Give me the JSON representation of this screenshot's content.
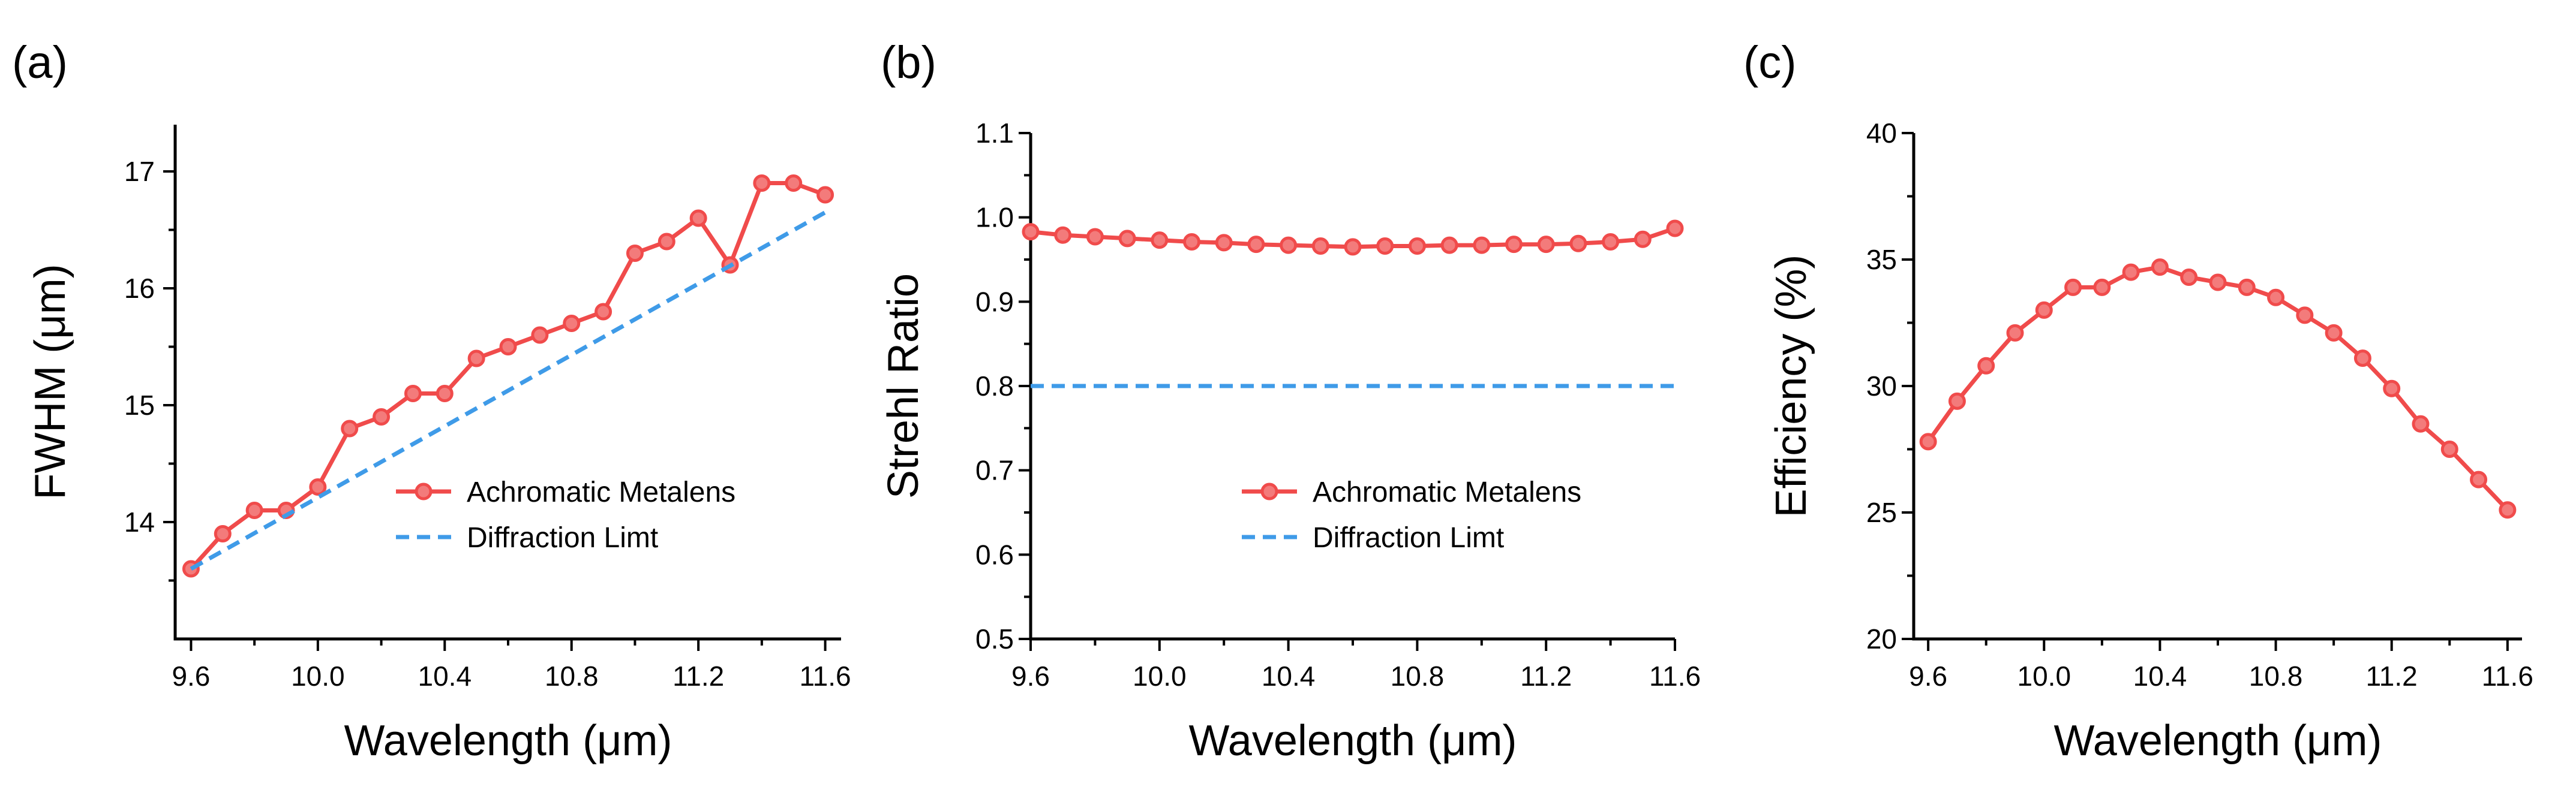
{
  "figure": {
    "colors": {
      "series": "#f04b4b",
      "marker_fill": "#f37b7b",
      "limit": "#3f9be8",
      "axis": "#000000"
    }
  },
  "chart_data": [
    {
      "type": "line",
      "panel_label": "(a)",
      "xlabel": "Wavelength (μm)",
      "ylabel": "FWHM (μm)",
      "xlim": [
        9.55,
        11.65
      ],
      "ylim": [
        13.0,
        17.4
      ],
      "xticks": [
        9.6,
        10.0,
        10.4,
        10.8,
        11.2,
        11.6
      ],
      "xtick_labels": [
        "9.6",
        "10.0",
        "10.4",
        "10.8",
        "11.2",
        "11.6"
      ],
      "yticks": [
        14,
        15,
        16,
        17
      ],
      "ytick_labels": [
        "14",
        "15",
        "16",
        "17"
      ],
      "series": [
        {
          "name": "Achromatic Metalens",
          "style": "line-marker",
          "x": [
            9.6,
            9.7,
            9.8,
            9.9,
            10.0,
            10.1,
            10.2,
            10.3,
            10.4,
            10.5,
            10.6,
            10.7,
            10.8,
            10.9,
            11.0,
            11.1,
            11.2,
            11.3,
            11.4,
            11.5,
            11.6
          ],
          "y": [
            13.6,
            13.9,
            14.1,
            14.1,
            14.3,
            14.8,
            14.9,
            15.1,
            15.1,
            15.4,
            15.5,
            15.6,
            15.7,
            15.8,
            16.3,
            16.4,
            16.6,
            16.2,
            16.9,
            16.9,
            16.8
          ]
        },
        {
          "name": "Diffraction Limt",
          "style": "dashed",
          "x": [
            9.6,
            11.6
          ],
          "y": [
            13.6,
            16.65
          ]
        }
      ],
      "legend_position": "lower-right"
    },
    {
      "type": "line",
      "panel_label": "(b)",
      "xlabel": "Wavelength (μm)",
      "ylabel": "Strehl Ratio",
      "xlim": [
        9.6,
        11.6
      ],
      "ylim": [
        0.5,
        1.1
      ],
      "xticks": [
        9.6,
        10.0,
        10.4,
        10.8,
        11.2,
        11.6
      ],
      "xtick_labels": [
        "9.6",
        "10.0",
        "10.4",
        "10.8",
        "11.2",
        "11.6"
      ],
      "yticks": [
        0.5,
        0.6,
        0.7,
        0.8,
        0.9,
        1.0,
        1.1
      ],
      "ytick_labels": [
        "0.5",
        "0.6",
        "0.7",
        "0.8",
        "0.9",
        "1.0",
        "1.1"
      ],
      "series": [
        {
          "name": "Achromatic Metalens",
          "style": "line-marker",
          "x": [
            9.6,
            9.7,
            9.8,
            9.9,
            10.0,
            10.1,
            10.2,
            10.3,
            10.4,
            10.5,
            10.6,
            10.7,
            10.8,
            10.9,
            11.0,
            11.1,
            11.2,
            11.3,
            11.4,
            11.5,
            11.6
          ],
          "y": [
            0.983,
            0.979,
            0.977,
            0.975,
            0.973,
            0.971,
            0.97,
            0.968,
            0.967,
            0.966,
            0.965,
            0.966,
            0.966,
            0.967,
            0.967,
            0.968,
            0.968,
            0.969,
            0.971,
            0.974,
            0.987
          ]
        },
        {
          "name": "Diffraction Limt",
          "style": "dashed",
          "x": [
            9.6,
            11.6
          ],
          "y": [
            0.8,
            0.8
          ]
        }
      ],
      "legend_position": "lower-right"
    },
    {
      "type": "line",
      "panel_label": "(c)",
      "xlabel": "Wavelength (μm)",
      "ylabel": "Efficiency (%)",
      "xlim": [
        9.55,
        11.65
      ],
      "ylim": [
        20,
        40
      ],
      "xticks": [
        9.6,
        10.0,
        10.4,
        10.8,
        11.2,
        11.6
      ],
      "xtick_labels": [
        "9.6",
        "10.0",
        "10.4",
        "10.8",
        "11.2",
        "11.6"
      ],
      "yticks": [
        20,
        25,
        30,
        35,
        40
      ],
      "ytick_labels": [
        "20",
        "25",
        "30",
        "35",
        "40"
      ],
      "series": [
        {
          "name": "Efficiency",
          "style": "line-marker",
          "x": [
            9.6,
            9.7,
            9.8,
            9.9,
            10.0,
            10.1,
            10.2,
            10.3,
            10.4,
            10.5,
            10.6,
            10.7,
            10.8,
            10.9,
            11.0,
            11.1,
            11.2,
            11.3,
            11.4,
            11.5,
            11.6
          ],
          "y": [
            27.8,
            29.4,
            30.8,
            32.1,
            33.0,
            33.9,
            33.9,
            34.5,
            34.7,
            34.3,
            34.1,
            33.9,
            33.5,
            32.8,
            32.1,
            31.1,
            29.9,
            28.5,
            27.5,
            26.3,
            25.1
          ]
        }
      ]
    }
  ]
}
